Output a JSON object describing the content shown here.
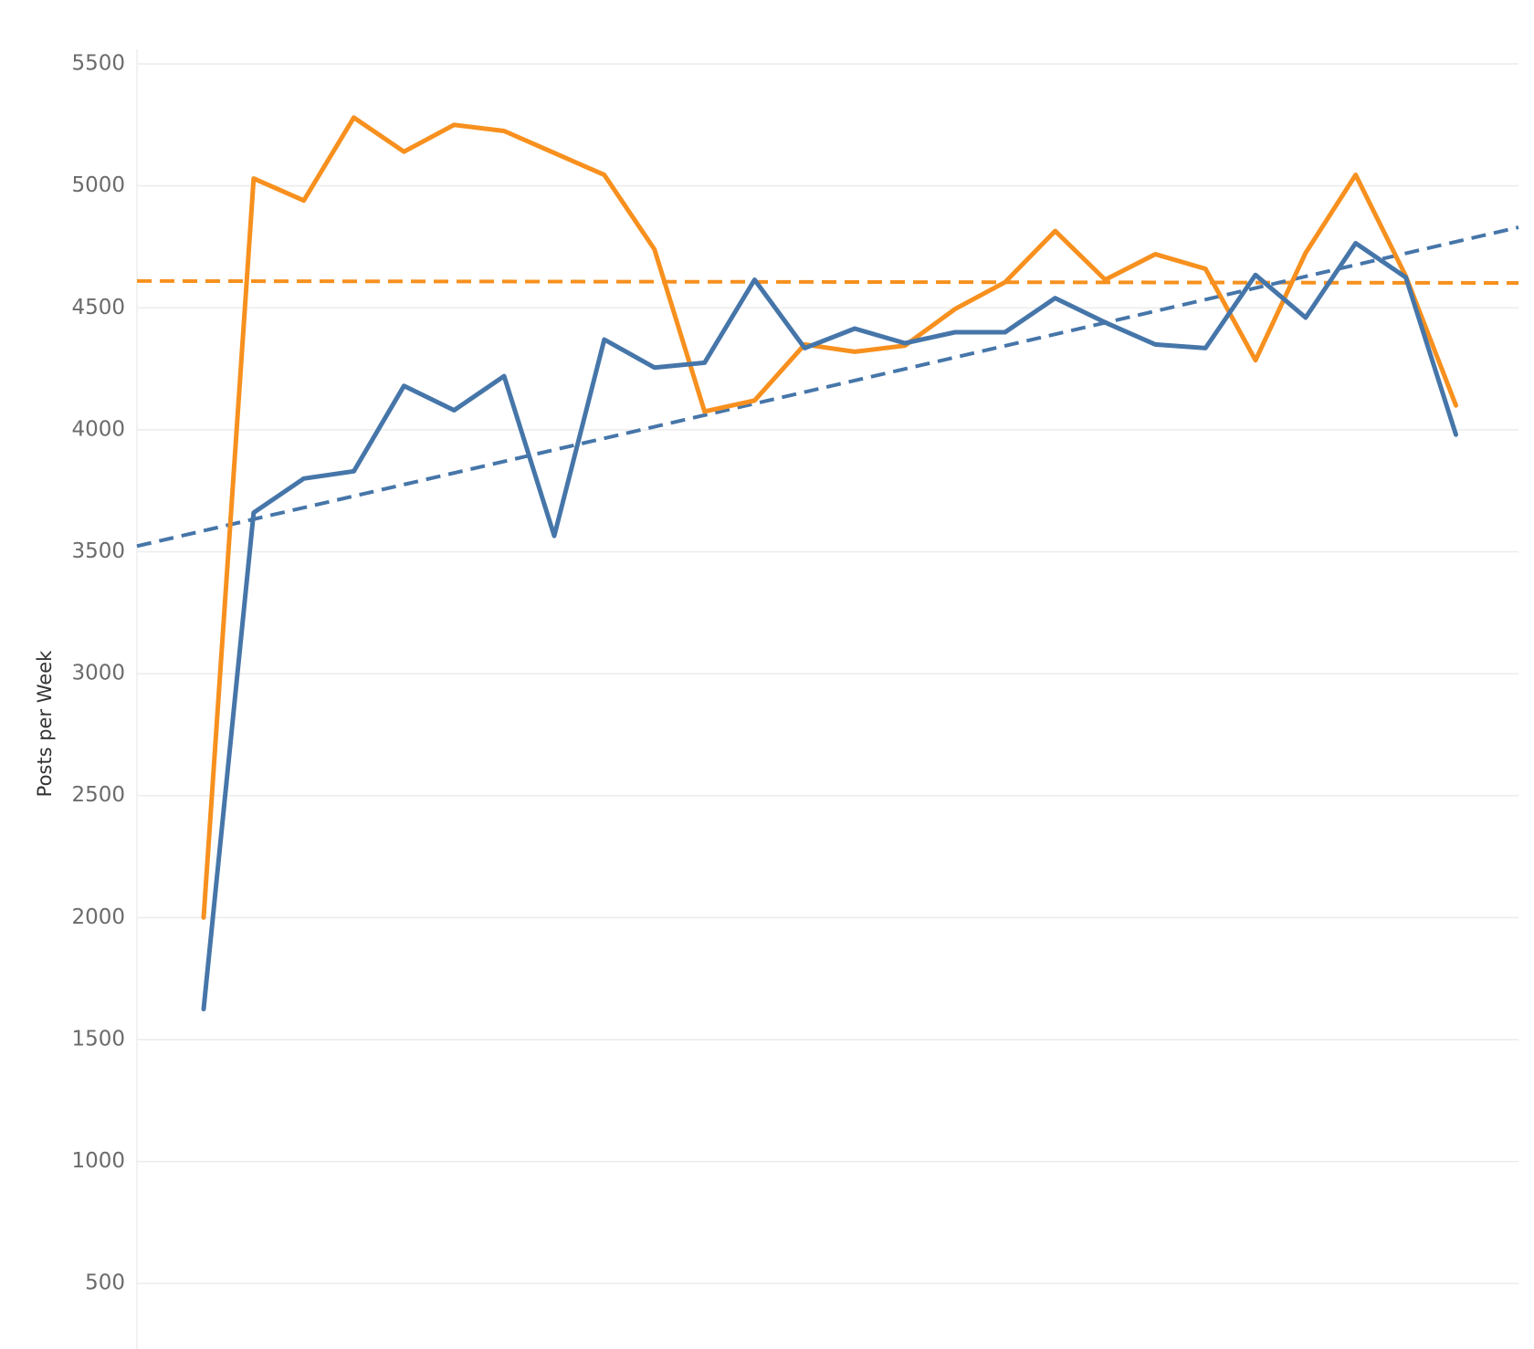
{
  "chart_data": {
    "type": "line",
    "y_label": "Posts per Week",
    "categories": [
      null,
      null,
      null,
      null,
      null,
      null,
      null,
      null,
      null,
      null,
      null,
      null,
      null,
      null,
      null,
      null,
      null,
      null,
      null,
      null,
      null,
      null,
      null,
      null,
      null,
      null
    ],
    "series": [
      {
        "color": "#f7901e",
        "values": [
          2000,
          5030,
          4940,
          5280,
          5140,
          5250,
          5225,
          5135,
          5045,
          4740,
          4075,
          4120,
          4350,
          4320,
          4345,
          4495,
          4605,
          4815,
          4615,
          4720,
          4660,
          4285,
          4725,
          5045,
          4630,
          4100
        ]
      },
      {
        "color": "#4676a9",
        "values": [
          1625,
          3660,
          3800,
          3830,
          4180,
          4080,
          4220,
          3565,
          4370,
          4255,
          4275,
          4615,
          4335,
          4415,
          4355,
          4400,
          4400,
          4540,
          4440,
          4350,
          4335,
          4635,
          4460,
          4765,
          4625,
          3980
        ]
      }
    ],
    "reference_lines": [
      {
        "color": "#f7901e",
        "start": 4610,
        "end": 4602
      },
      {
        "color": "#4676a9",
        "start": 3523,
        "end": 4830
      }
    ],
    "ylim": [
      250,
      5560
    ],
    "yticks": [
      500,
      1000,
      1500,
      2000,
      2500,
      3000,
      3500,
      4000,
      4500,
      5000,
      5500
    ],
    "grid": true
  }
}
